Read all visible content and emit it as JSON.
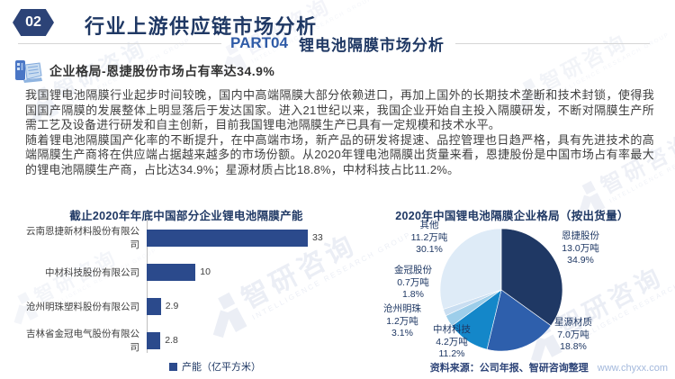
{
  "header": {
    "section_number": "02",
    "section_title": "行业上游供应链市场分析",
    "part_label": "PART04",
    "part_title": "锂电池隔膜市场分析"
  },
  "subtitle": {
    "icon": "computer-report-icon",
    "text": "企业格局-恩捷股份市场占有率达34.9%"
  },
  "paragraphs": {
    "p1": "我国锂电池隔膜行业起步时间较晚，国内中高端隔膜大部分依赖进口，再加上国外的长期技术垄断和技术封锁，使得我国国产隔膜的发展整体上明显落后于发达国家。进入21世纪以来，我国企业开始自主投入隔膜研发，不断对隔膜生产所需工艺及设备进行研发和自主创新，目前我国锂电池隔膜生产已具有一定规模和技术水平。",
    "p2": "随着锂电池隔膜国产化率的不断提升，在中高端市场，新产品的研发将提速、品控管理也日趋严格，具有先进技术的高端隔膜生产商将在供应端占据越来越多的市场份额。从2020年锂电池隔膜出货量来看，恩捷股份是中国市场占有率最大的锂电池隔膜生产商，占比达34.9%；星源材质占比18.8%，中材科技占比11.2%。"
  },
  "chart_data": [
    {
      "type": "bar",
      "orientation": "horizontal",
      "title": "截止2020年年底中国部分企业锂电池隔膜产能",
      "categories": [
        "云南恩捷新材料股份有限公司",
        "中材科技股份有限公司",
        "沧州明珠塑料股份有限公司",
        "吉林省金冠电气股份有限公司"
      ],
      "values": [
        33,
        10,
        2.9,
        2.8
      ],
      "value_labels": [
        "33",
        "10",
        "2.9",
        "2.8"
      ],
      "xlim": [
        0,
        35
      ],
      "legend": "产能（亿平方米）",
      "bar_color": "#2B4A8C",
      "grid": false
    },
    {
      "type": "pie",
      "title": "2020年中国锂电池隔膜企业格局（按出货量）",
      "start_angle": "top",
      "direction": "clockwise",
      "slices": [
        {
          "name": "恩捷股份",
          "amount": "13.0万吨",
          "percent": "34.9%",
          "value": 34.9,
          "color": "#1F3864"
        },
        {
          "name": "星源材质",
          "amount": "7.0万吨",
          "percent": "18.8%",
          "value": 18.8,
          "color": "#2E5FAC"
        },
        {
          "name": "中材科技",
          "amount": "4.2万吨",
          "percent": "11.2%",
          "value": 11.2,
          "color": "#1487C9"
        },
        {
          "name": "沧州明珠",
          "amount": "1.2万吨",
          "percent": "3.1%",
          "value": 3.1,
          "color": "#9DCEEA"
        },
        {
          "name": "金冠股份",
          "amount": "0.7万吨",
          "percent": "1.8%",
          "value": 1.8,
          "color": "#C9DEF1"
        },
        {
          "name": "其他",
          "amount": "11.2万吨",
          "percent": "30.1%",
          "value": 30.1,
          "color": "#DEEBF7"
        }
      ]
    }
  ],
  "footer": {
    "source": "资料来源：公司年报、智研咨询整理",
    "website": "www.chyxx.com"
  },
  "watermark": {
    "text": "智研咨询",
    "subtext": "INTELLIGENCE RESEARCH GROUP"
  },
  "colors": {
    "navy": "#1F3864",
    "accent_blue": "#2F5BA7",
    "bar_blue": "#2B4A8C",
    "body_text": "#3F3F3F"
  }
}
